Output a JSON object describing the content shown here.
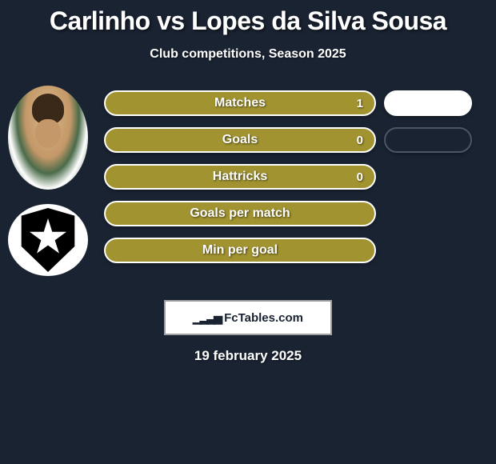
{
  "title": "Carlinho vs Lopes da Silva Sousa",
  "subtitle": "Club competitions, Season 2025",
  "colors": {
    "background": "#1a2332",
    "bar_fill": "#a19330",
    "bar_border": "#ffffff",
    "bar_blank": "#ffffff",
    "bar_dark_border": "#4a5568",
    "text": "#ffffff"
  },
  "stats": [
    {
      "label": "Matches",
      "value": "1",
      "right_blank": true,
      "right_dark": false
    },
    {
      "label": "Goals",
      "value": "0",
      "right_blank": false,
      "right_dark": true
    },
    {
      "label": "Hattricks",
      "value": "0",
      "right_blank": false,
      "right_dark": false
    },
    {
      "label": "Goals per match",
      "value": "",
      "right_blank": false,
      "right_dark": false
    },
    {
      "label": "Min per goal",
      "value": "",
      "right_blank": false,
      "right_dark": false
    }
  ],
  "brand": "FcTables.com",
  "date": "19 february 2025",
  "avatars": {
    "player_alt": "player-photo",
    "club_alt": "club-badge"
  }
}
